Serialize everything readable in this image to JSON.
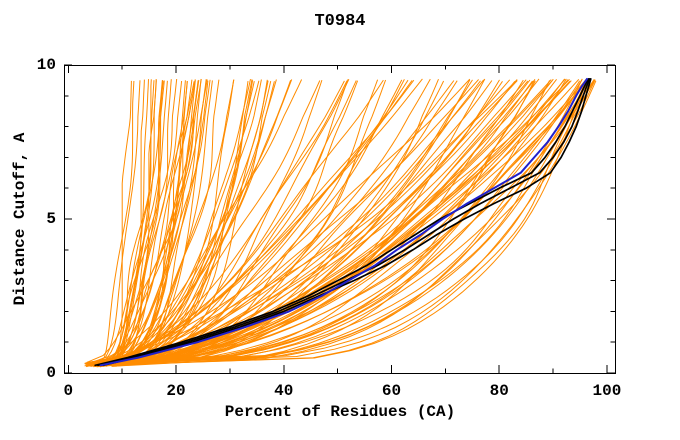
{
  "chart_data": {
    "type": "line",
    "title": "T0984",
    "xlabel": "Percent of Residues (CA)",
    "ylabel": "Distance Cutoff, A",
    "grid": false,
    "legend": "none",
    "x_axis": {
      "range": [
        -0.8,
        101.5
      ],
      "major": [
        0,
        20,
        40,
        60,
        80,
        100
      ],
      "minor": [
        10,
        30,
        50,
        70,
        90
      ]
    },
    "y_axis": {
      "range": [
        0,
        10
      ],
      "major": [
        0,
        5,
        10
      ],
      "minor": [
        1,
        2,
        3,
        4,
        6,
        7,
        8,
        9
      ]
    },
    "colors": {
      "ensemble": "#ff8c00",
      "selected": "#000000",
      "best": "#2020cc",
      "frame": "#000000",
      "background": "#ffffff"
    },
    "highlight_series": [
      {
        "name": "black-model-1",
        "color": "#000000",
        "width": 1.7,
        "points": [
          [
            5,
            0.25
          ],
          [
            11,
            0.5
          ],
          [
            21,
            1.0
          ],
          [
            30,
            1.5
          ],
          [
            38,
            2.0
          ],
          [
            44.5,
            2.5
          ],
          [
            50,
            3.0
          ],
          [
            55.5,
            3.5
          ],
          [
            60,
            4.0
          ],
          [
            64.5,
            4.5
          ],
          [
            69,
            5.0
          ],
          [
            74.5,
            5.5
          ],
          [
            80,
            6.0
          ],
          [
            86,
            6.5
          ],
          [
            88.5,
            7.0
          ],
          [
            90.5,
            7.5
          ],
          [
            92.2,
            8.0
          ],
          [
            93.6,
            8.5
          ],
          [
            95,
            9.0
          ],
          [
            95.8,
            9.3
          ],
          [
            96.6,
            9.55
          ]
        ]
      },
      {
        "name": "black-model-2",
        "color": "#000000",
        "width": 1.7,
        "points": [
          [
            5.5,
            0.25
          ],
          [
            11.5,
            0.5
          ],
          [
            22,
            1.0
          ],
          [
            31,
            1.5
          ],
          [
            39,
            2.0
          ],
          [
            45.5,
            2.5
          ],
          [
            51.5,
            3.0
          ],
          [
            57.5,
            3.5
          ],
          [
            62.5,
            4.0
          ],
          [
            67,
            4.5
          ],
          [
            71.5,
            5.0
          ],
          [
            76.5,
            5.5
          ],
          [
            82,
            6.0
          ],
          [
            87.5,
            6.5
          ],
          [
            90,
            7.0
          ],
          [
            92,
            7.5
          ],
          [
            93.5,
            8.0
          ],
          [
            94.6,
            8.5
          ],
          [
            95.6,
            9.0
          ],
          [
            96.2,
            9.3
          ],
          [
            96.8,
            9.55
          ]
        ]
      },
      {
        "name": "black-model-3",
        "color": "#000000",
        "width": 1.7,
        "points": [
          [
            6.5,
            0.25
          ],
          [
            12.5,
            0.5
          ],
          [
            23,
            1.0
          ],
          [
            32,
            1.5
          ],
          [
            40,
            2.0
          ],
          [
            46.5,
            2.5
          ],
          [
            53,
            3.0
          ],
          [
            59,
            3.5
          ],
          [
            64,
            4.0
          ],
          [
            68.5,
            4.5
          ],
          [
            73.5,
            5.0
          ],
          [
            79,
            5.5
          ],
          [
            85,
            6.0
          ],
          [
            89.5,
            6.5
          ],
          [
            91.5,
            7.0
          ],
          [
            93,
            7.5
          ],
          [
            94.3,
            8.0
          ],
          [
            95.3,
            8.5
          ],
          [
            96.1,
            9.0
          ],
          [
            96.6,
            9.3
          ],
          [
            97,
            9.55
          ]
        ]
      },
      {
        "name": "blue-best-model",
        "color": "#2020cc",
        "width": 2,
        "points": [
          [
            6,
            0.25
          ],
          [
            13,
            0.5
          ],
          [
            24,
            1.0
          ],
          [
            33,
            1.5
          ],
          [
            41,
            2.0
          ],
          [
            47,
            2.5
          ],
          [
            52,
            3.0
          ],
          [
            57,
            3.5
          ],
          [
            61,
            4.0
          ],
          [
            65.5,
            4.5
          ],
          [
            69.5,
            5.0
          ],
          [
            74,
            5.5
          ],
          [
            79,
            6.0
          ],
          [
            84,
            6.5
          ],
          [
            86.5,
            7.0
          ],
          [
            89,
            7.5
          ],
          [
            91,
            8.0
          ],
          [
            92.8,
            8.5
          ],
          [
            94.3,
            9.0
          ],
          [
            95.3,
            9.3
          ],
          [
            96.3,
            9.55
          ]
        ]
      }
    ],
    "ensemble": {
      "color": "#ff8c00",
      "count": 128,
      "seed": 11,
      "width": 1,
      "y_start": 0.2,
      "y_end": 9.55,
      "x_start_range": [
        3,
        9
      ],
      "wiggle_amp_range": [
        0.4,
        1.8
      ],
      "buckets": [
        {
          "x_end": [
            10,
            22
          ],
          "p": [
            0.22,
            0.45
          ],
          "count": 18
        },
        {
          "x_end": [
            22,
            38
          ],
          "p": [
            0.25,
            0.5
          ],
          "count": 30
        },
        {
          "x_end": [
            38,
            60
          ],
          "p": [
            0.35,
            0.65
          ],
          "count": 16
        },
        {
          "x_end": [
            60,
            85
          ],
          "p": [
            0.35,
            0.7
          ],
          "count": 26
        },
        {
          "x_end": [
            85,
            95
          ],
          "p": [
            0.3,
            0.6
          ],
          "count": 22
        },
        {
          "x_end": [
            95,
            98
          ],
          "p": [
            0.22,
            0.5
          ],
          "count": 16
        }
      ]
    }
  }
}
